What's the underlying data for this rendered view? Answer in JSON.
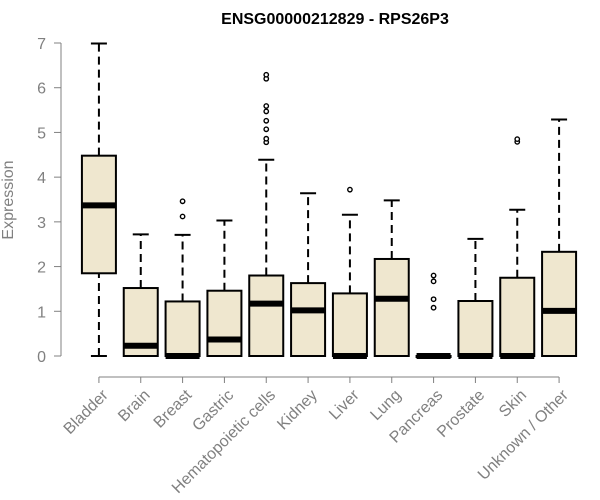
{
  "chart_data": {
    "type": "box",
    "title": "ENSG00000212829 - RPS26P3",
    "xlabel": "",
    "ylabel": "Expression",
    "ylim": [
      0,
      7
    ],
    "yticks": [
      "0",
      "1",
      "2",
      "3",
      "4",
      "5",
      "6",
      "7"
    ],
    "categories": [
      "Bladder",
      "Brain",
      "Breast",
      "Gastric",
      "Hematopoietic cells",
      "Kidney",
      "Liver",
      "Lung",
      "Pancreas",
      "Prostate",
      "Skin",
      "Unknown / Other"
    ],
    "boxes": [
      {
        "category": "Bladder",
        "min": 0.0,
        "q1": 1.85,
        "median": 3.37,
        "q3": 4.48,
        "max": 6.99,
        "outliers": []
      },
      {
        "category": "Brain",
        "min": 0.0,
        "q1": 0.0,
        "median": 0.23,
        "q3": 1.52,
        "max": 2.72,
        "outliers": []
      },
      {
        "category": "Breast",
        "min": 0.0,
        "q1": 0.0,
        "median": 0.0,
        "q3": 1.22,
        "max": 2.71,
        "outliers": [
          3.12,
          3.46
        ]
      },
      {
        "category": "Gastric",
        "min": 0.0,
        "q1": 0.0,
        "median": 0.37,
        "q3": 1.46,
        "max": 3.03,
        "outliers": []
      },
      {
        "category": "Hematopoietic cells",
        "min": 0.0,
        "q1": 0.0,
        "median": 1.17,
        "q3": 1.8,
        "max": 4.39,
        "outliers": [
          4.78,
          4.86,
          5.07,
          5.26,
          5.47,
          5.59,
          6.2,
          6.29
        ]
      },
      {
        "category": "Kidney",
        "min": 0.0,
        "q1": 0.0,
        "median": 1.02,
        "q3": 1.63,
        "max": 3.64,
        "outliers": []
      },
      {
        "category": "Liver",
        "min": 0.0,
        "q1": 0.0,
        "median": 0.0,
        "q3": 1.4,
        "max": 3.16,
        "outliers": [
          3.72
        ]
      },
      {
        "category": "Lung",
        "min": 0.0,
        "q1": 0.0,
        "median": 1.28,
        "q3": 2.17,
        "max": 3.48,
        "outliers": []
      },
      {
        "category": "Pancreas",
        "min": 0.0,
        "q1": 0.0,
        "median": 0.0,
        "q3": 0.0,
        "max": 0.0,
        "outliers": [
          1.08,
          1.27,
          1.67,
          1.8
        ]
      },
      {
        "category": "Prostate",
        "min": 0.0,
        "q1": 0.0,
        "median": 0.0,
        "q3": 1.23,
        "max": 2.62,
        "outliers": []
      },
      {
        "category": "Skin",
        "min": 0.0,
        "q1": 0.0,
        "median": 0.0,
        "q3": 1.75,
        "max": 3.27,
        "outliers": [
          4.79,
          4.85
        ]
      },
      {
        "category": "Unknown / Other",
        "min": 0.0,
        "q1": 0.0,
        "median": 1.01,
        "q3": 2.33,
        "max": 5.29,
        "outliers": []
      }
    ],
    "grid": false,
    "box_fill": "#EFE7CF",
    "box_stroke": "#000000",
    "median_color": "#000000",
    "tick_label_color": "#808080",
    "title_color": "#000000"
  }
}
